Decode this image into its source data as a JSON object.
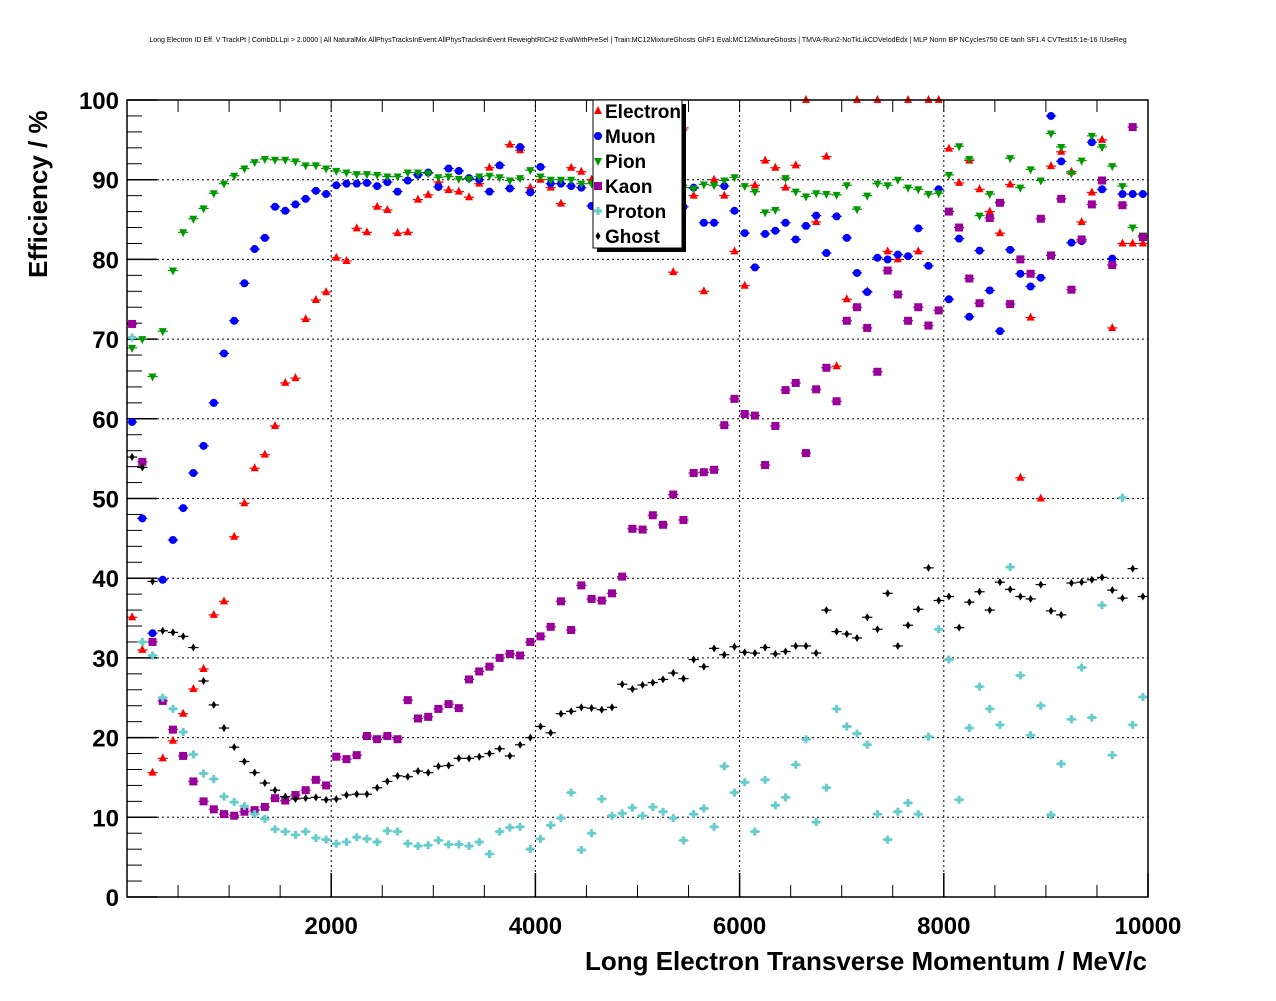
{
  "chart_data": {
    "type": "scatter",
    "title": "Long Electron ID Eff. V TrackPt | CombDLLpi > 2.0000 | All NaturalMix AllPhysTracksInEvent:AllPhysTracksInEvent ReweightRICH2 EvalWithPreSel | Train:MC12MixtureGhosts GhF1 Eval:MC12MixtureGhosts | TMVA-Run2-NoTkLikCDVelodEdx | MLP Norm BP NCycles750 CE tanh SF1.4 CVTest15:1e-16 !UseReg",
    "xlabel": "Long Electron Transverse Momentum / MeV/c",
    "ylabel": "Efficiency / %",
    "xlim": [
      0,
      10000
    ],
    "ylim": [
      0,
      100
    ],
    "grid": true,
    "legend_position": "top-center",
    "x_bin_start": 50,
    "x_bin_width": 100,
    "xticks": [
      "2000",
      "4000",
      "6000",
      "8000",
      "10000"
    ],
    "yticks": [
      "0",
      "10",
      "20",
      "30",
      "40",
      "50",
      "60",
      "70",
      "80",
      "90",
      "100"
    ],
    "series": [
      {
        "name": "Electron",
        "color": "#ff0000",
        "marker": "triangle-up",
        "values": [
          35.1,
          31,
          15.6,
          17.4,
          19.6,
          23,
          26.1,
          28.6,
          35.4,
          37.1,
          45.2,
          49.4,
          53.8,
          55.5,
          59.1,
          64.5,
          65.1,
          72.5,
          74.9,
          75.9,
          80.2,
          79.8,
          83.9,
          83.4,
          86.6,
          86.2,
          83.3,
          83.4,
          87.5,
          88.1,
          89.7,
          88.7,
          88.5,
          87.8,
          89.5,
          91.5,
          91.8,
          94.4,
          93.7,
          89,
          90,
          89,
          87,
          91.5,
          91,
          90,
          89,
          88,
          82,
          85,
          88,
          86,
          89,
          78.4,
          96.5,
          88,
          76,
          90,
          88,
          81,
          76.7,
          89.3,
          92.4,
          91.5,
          89,
          91.8,
          100,
          84.7,
          92.9,
          66.6,
          75,
          100,
          76,
          100,
          81,
          80,
          100,
          81,
          100,
          100,
          93.9,
          89.6,
          92.4,
          88.8,
          86,
          83.3,
          89.4,
          52.6,
          72.7,
          50,
          91.7,
          93.5,
          91,
          84.7,
          88.4,
          95,
          71.4,
          82,
          82,
          82
        ]
      },
      {
        "name": "Muon",
        "color": "#0000ff",
        "marker": "circle",
        "values": [
          59.6,
          47.5,
          33.1,
          39.8,
          44.8,
          48.8,
          53.2,
          56.6,
          62.0,
          68.2,
          72.3,
          77.0,
          81.3,
          82.7,
          86.6,
          86.1,
          86.9,
          87.6,
          88.6,
          88.2,
          89.3,
          89.5,
          89.5,
          89.6,
          89.2,
          89.7,
          88.5,
          89.9,
          90.6,
          90.9,
          89.1,
          91.4,
          91.1,
          90.2,
          90.0,
          88.5,
          91.8,
          88.9,
          94.1,
          88.4,
          91.6,
          89.5,
          89.5,
          89.2,
          89.0,
          86.7,
          88.6,
          88.4,
          90,
          85.6,
          86.5,
          85.4,
          88.8,
          87.9,
          86.6,
          89,
          84.6,
          84.6,
          89.2,
          86.1,
          83.3,
          79,
          83.2,
          83.6,
          84.6,
          82.5,
          84.2,
          85.5,
          80.8,
          85.4,
          82.7,
          78.3,
          75.9,
          80.2,
          80,
          80.6,
          80.4,
          83.9,
          79.2,
          88.8,
          75,
          82.6,
          72.8,
          81.1,
          76.1,
          71,
          81.2,
          78.2,
          76.6,
          77.7,
          98,
          92.3,
          82.1,
          82.3,
          94.7,
          88.8,
          80.1,
          88.2,
          88.2,
          88.2
        ]
      },
      {
        "name": "Pion",
        "color": "#009900",
        "marker": "triangle-down",
        "values": [
          68.9,
          70.0,
          65.3,
          71.0,
          78.6,
          83.4,
          85.1,
          86.4,
          88.3,
          89.5,
          90.5,
          91.4,
          92.2,
          92.6,
          92.5,
          92.5,
          92.3,
          91.8,
          91.8,
          91.4,
          91.1,
          90.9,
          90.7,
          90.7,
          90.6,
          90.4,
          90.4,
          90.9,
          90.9,
          90.8,
          90.3,
          90.4,
          90.1,
          90.1,
          90.4,
          90.5,
          90.3,
          89.9,
          90.2,
          91.2,
          90.4,
          90,
          90,
          90,
          89.5,
          89.5,
          90,
          89,
          89.5,
          88.4,
          90.3,
          89.6,
          90,
          90,
          89,
          88.9,
          89.4,
          89.3,
          89.9,
          90.3,
          89.2,
          88.5,
          85.9,
          86.2,
          90.2,
          88.5,
          87.9,
          88.3,
          88.2,
          88.1,
          89.3,
          86.3,
          88,
          89.5,
          89.3,
          90,
          89,
          88.8,
          88.2,
          88.3,
          90.6,
          94.2,
          92.6,
          85.5,
          88.2,
          87.2,
          92.7,
          89,
          91.3,
          89.9,
          95.8,
          94.1,
          90.8,
          92.4,
          95.5,
          94.1,
          91.7,
          89.2,
          84,
          83
        ]
      },
      {
        "name": "Kaon",
        "color": "#990099",
        "marker": "square",
        "values": [
          71.9,
          54.6,
          32.0,
          24.6,
          21.0,
          17.7,
          14.5,
          12.0,
          11.0,
          10.4,
          10.2,
          10.7,
          10.9,
          11.3,
          12.4,
          12.1,
          12.8,
          13.4,
          14.7,
          14,
          17.6,
          17.3,
          17.8,
          20.2,
          19.8,
          20.2,
          19.8,
          24.7,
          22.4,
          22.6,
          23.6,
          24.2,
          23.7,
          27.3,
          28.3,
          28.9,
          30,
          30.5,
          30.3,
          32,
          32.7,
          33.9,
          37.1,
          33.5,
          39.1,
          37.4,
          37.2,
          38.1,
          40.2,
          46.2,
          46.1,
          47.9,
          46.7,
          50.5,
          47.3,
          53.2,
          53.3,
          53.6,
          59.2,
          62.5,
          60.6,
          60.4,
          54.2,
          59.1,
          63.6,
          64.5,
          55.7,
          63.7,
          66.4,
          62.2,
          72.3,
          74,
          71.4,
          65.9,
          78.6,
          75.6,
          72.3,
          74,
          71.7,
          73.6,
          86,
          84,
          77.6,
          74.5,
          85.2,
          87.1,
          74.4,
          80,
          78.2,
          85.1,
          80.5,
          87.6,
          76.2,
          82.5,
          86.9,
          89.9,
          79.3,
          86.8,
          96.6,
          82.8
        ]
      },
      {
        "name": "Proton",
        "color": "#66cccc",
        "marker": "cross",
        "values": [
          70.2,
          32,
          30.3,
          25,
          23.6,
          20.7,
          17.9,
          15.5,
          14.8,
          12.6,
          11.9,
          11.4,
          10.4,
          9.8,
          8.5,
          8.2,
          7.8,
          8.2,
          7.4,
          7.2,
          6.7,
          6.9,
          7.5,
          7.3,
          6.9,
          8.3,
          8.2,
          6.7,
          6.4,
          6.5,
          7.1,
          6.6,
          6.6,
          6.4,
          6.9,
          5.4,
          8.2,
          8.7,
          8.8,
          6.0,
          7.3,
          9.0,
          9.9,
          13.1,
          5.9,
          8.0,
          12.3,
          10.2,
          10.5,
          11.2,
          10.2,
          11.3,
          10.7,
          9.9,
          7.1,
          10.4,
          11.1,
          8.8,
          16.4,
          13.1,
          14.4,
          8.2,
          14.7,
          11.5,
          12.5,
          16.6,
          19.8,
          9.4,
          13.7,
          23.6,
          21.4,
          20.5,
          19.1,
          10.4,
          7.2,
          10.7,
          11.8,
          10.4,
          20.1,
          33.6,
          29.8,
          12.2,
          21.2,
          26.4,
          23.6,
          21.6,
          41.4,
          27.8,
          20.3,
          24,
          10.3,
          16.7,
          22.3,
          28.8,
          22.5,
          36.6,
          17.8,
          50.1,
          21.6,
          25.1
        ]
      },
      {
        "name": "Ghost",
        "color": "#000000",
        "marker": "diamond",
        "values": [
          55.2,
          53.9,
          39.6,
          33.4,
          33.2,
          32.7,
          31.3,
          27.1,
          24.1,
          21.2,
          18.8,
          17,
          15.6,
          14.3,
          13.4,
          12.6,
          12.3,
          12.4,
          12.5,
          12.2,
          12.3,
          12.8,
          12.9,
          12.9,
          13.7,
          14.5,
          15.2,
          15.1,
          15.8,
          15.6,
          16.4,
          16.5,
          17.4,
          17.4,
          17.6,
          18.0,
          18.6,
          17.7,
          19.1,
          20,
          21.4,
          20.6,
          23,
          23.3,
          23.8,
          23.7,
          23.5,
          23.8,
          26.7,
          26.1,
          26.6,
          26.9,
          27.3,
          28.1,
          27.4,
          29.8,
          28.9,
          31.2,
          30.4,
          31.4,
          30.7,
          30.6,
          31.3,
          30.5,
          30.8,
          31.5,
          31.5,
          30.6,
          36,
          33.3,
          33,
          32.5,
          35.1,
          33.6,
          38.1,
          31.5,
          34.1,
          36.1,
          41.3,
          37.2,
          37.7,
          33.8,
          37,
          38.3,
          36,
          39.5,
          38.6,
          37.7,
          37.4,
          39.2,
          35.9,
          35.4,
          39.4,
          39.5,
          39.8,
          40.1,
          38.5,
          37.5,
          41.2,
          37.7
        ]
      }
    ]
  }
}
